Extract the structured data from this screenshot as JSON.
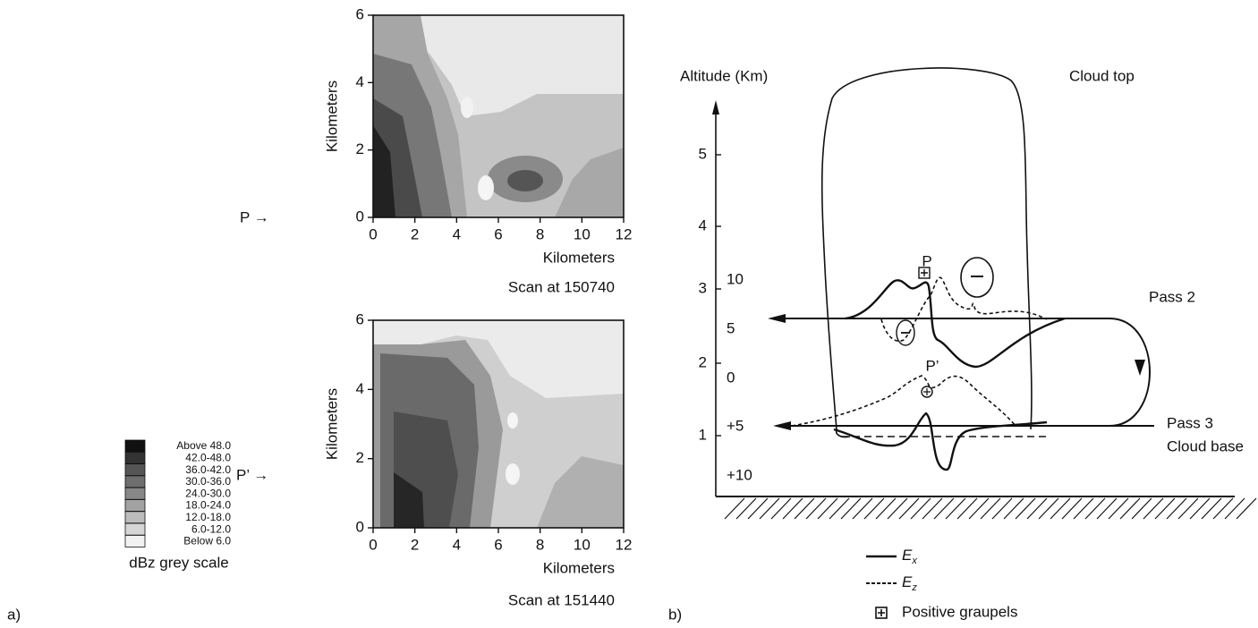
{
  "panel_a": {
    "label": "a)",
    "scans": [
      {
        "marker": "P  →",
        "ylabel": "Kilometers",
        "xlabel": "Kilometers",
        "caption": "Scan at 150740",
        "xticks": [
          "0",
          "2",
          "4",
          "6",
          "8",
          "10",
          "12"
        ],
        "yticks": [
          "0",
          "2",
          "4",
          "6"
        ]
      },
      {
        "marker": "P’  →",
        "ylabel": "Kilometers",
        "xlabel": "Kilometers",
        "caption": "Scan at 151440",
        "xticks": [
          "0",
          "2",
          "4",
          "6",
          "8",
          "10",
          "12"
        ],
        "yticks": [
          "0",
          "2",
          "4",
          "6"
        ]
      }
    ],
    "legend": {
      "entries": [
        "Above 48.0",
        "42.0-48.0",
        "36.0-42.0",
        "30.0-36.0",
        "24.0-30.0",
        "18.0-24.0",
        "12.0-18.0",
        "6.0-12.0",
        "Below  6.0"
      ],
      "title": "dBz grey scale"
    }
  },
  "panel_b": {
    "label": "b)",
    "axis_title": "Altitude (Km)",
    "altitude_ticks": [
      "1",
      "2",
      "3",
      "4",
      "5"
    ],
    "field_ticks": [
      "10",
      "5",
      "0",
      "+5",
      "+10"
    ],
    "cloud_top": "Cloud top",
    "pass2": "Pass 2",
    "pass3": "Pass 3",
    "cloud_base": "Cloud base",
    "p": "P",
    "p_prime": "P’",
    "legend": [
      {
        "symbol": "E",
        "sub": "x"
      },
      {
        "symbol": "E",
        "sub": "z"
      },
      {
        "text": "Positive graupels"
      }
    ]
  }
}
